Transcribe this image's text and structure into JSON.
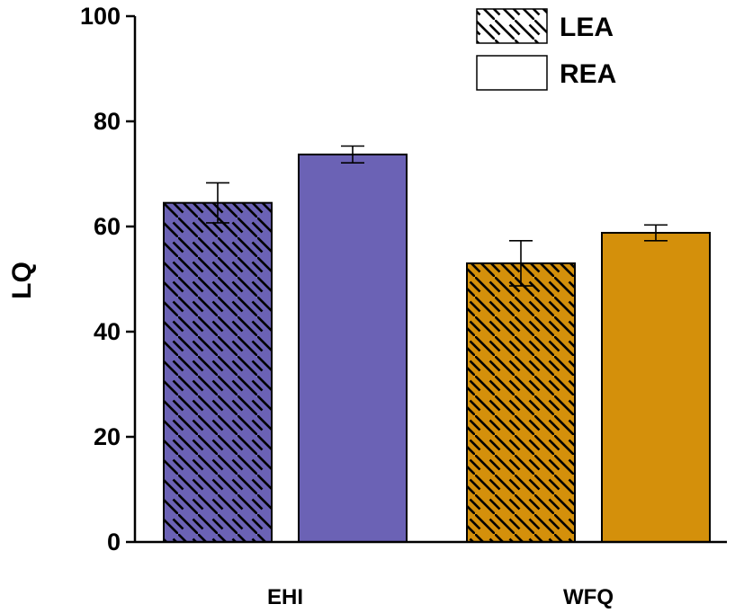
{
  "chart_data": {
    "type": "bar",
    "categories": [
      "EHI",
      "WFQ"
    ],
    "series": [
      {
        "name": "LEA",
        "values": [
          64.5,
          53.0
        ],
        "errors": [
          3.8,
          4.3
        ],
        "pattern": "hatched"
      },
      {
        "name": "REA",
        "values": [
          73.7,
          58.8
        ],
        "errors": [
          1.6,
          1.5
        ],
        "pattern": "solid"
      }
    ],
    "category_colors": [
      "#6b62b5",
      "#d4900b"
    ],
    "ylabel": "LQ",
    "xlabel": "",
    "ylim": [
      0,
      100
    ],
    "yticks": [
      "0",
      "20",
      "40",
      "60",
      "80",
      "100"
    ],
    "legend": {
      "placement": "top-right",
      "entries": [
        "LEA",
        "REA"
      ]
    },
    "grid": false
  }
}
